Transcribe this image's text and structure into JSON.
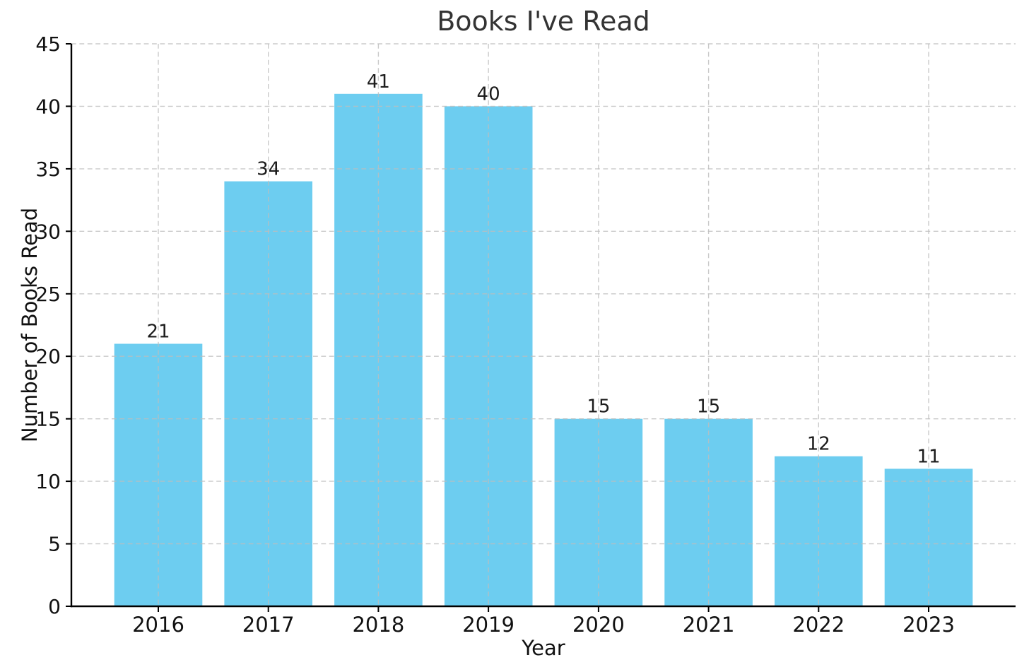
{
  "chart_data": {
    "type": "bar",
    "title": "Books I've Read",
    "xlabel": "Year",
    "ylabel": "Number of Books Read",
    "categories": [
      "2016",
      "2017",
      "2018",
      "2019",
      "2020",
      "2021",
      "2022",
      "2023"
    ],
    "values": [
      21,
      34,
      41,
      40,
      15,
      15,
      12,
      11
    ],
    "bar_value_labels": [
      "21",
      "34",
      "41",
      "40",
      "15",
      "15",
      "12",
      "11"
    ],
    "ylim": [
      0,
      45
    ],
    "yticks": [
      0,
      5,
      10,
      15,
      20,
      25,
      30,
      35,
      40,
      45
    ],
    "grid": {
      "visible": true,
      "style": "dashed",
      "over_bars": true
    },
    "legend": {
      "visible": false
    },
    "spines": {
      "left": true,
      "bottom": true,
      "top": false,
      "right": false
    },
    "colors": {
      "bar_fill": "#6dcdf0",
      "grid_line": "#bdbdbd",
      "axis_line": "#000000",
      "tick_text": "#111111",
      "value_label_text": "#1c1c1c",
      "title_text": "#333333",
      "background": "#ffffff"
    }
  }
}
